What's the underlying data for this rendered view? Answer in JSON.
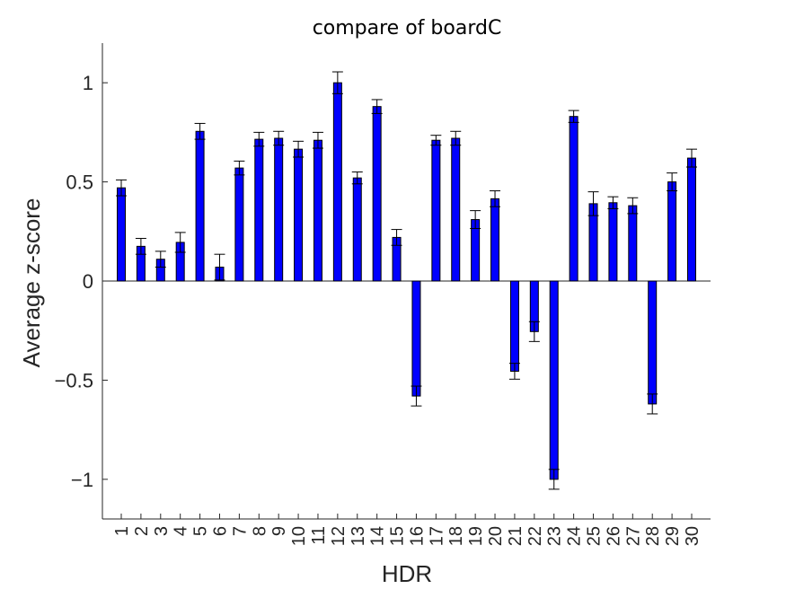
{
  "chart_data": {
    "type": "bar",
    "title": "compare of boardC",
    "xlabel": "HDR",
    "ylabel": "Average z-score",
    "ylim": [
      -1.2,
      1.2
    ],
    "yticks": [
      -1,
      -0.5,
      0,
      0.5,
      1
    ],
    "ytick_labels": [
      "−1",
      "−0.5",
      "0",
      "0.5",
      "1"
    ],
    "categories": [
      "1",
      "2",
      "3",
      "4",
      "5",
      "6",
      "7",
      "8",
      "9",
      "10",
      "11",
      "12",
      "13",
      "14",
      "15",
      "16",
      "17",
      "18",
      "19",
      "20",
      "21",
      "22",
      "23",
      "24",
      "25",
      "26",
      "27",
      "28",
      "29",
      "30"
    ],
    "values": [
      0.47,
      0.175,
      0.11,
      0.195,
      0.755,
      0.07,
      0.57,
      0.715,
      0.72,
      0.665,
      0.71,
      1.0,
      0.52,
      0.88,
      0.22,
      -0.58,
      0.71,
      0.72,
      0.31,
      0.415,
      -0.455,
      -0.255,
      -1.0,
      0.83,
      0.39,
      0.395,
      0.38,
      -0.62,
      0.5,
      0.62
    ],
    "errors": [
      0.04,
      0.04,
      0.04,
      0.05,
      0.04,
      0.065,
      0.035,
      0.035,
      0.035,
      0.04,
      0.04,
      0.055,
      0.03,
      0.035,
      0.04,
      0.05,
      0.025,
      0.035,
      0.045,
      0.04,
      0.04,
      0.05,
      0.05,
      0.03,
      0.06,
      0.03,
      0.04,
      0.05,
      0.045,
      0.045
    ],
    "bar_color": "#0000ff",
    "grid": false,
    "legend": "none"
  }
}
